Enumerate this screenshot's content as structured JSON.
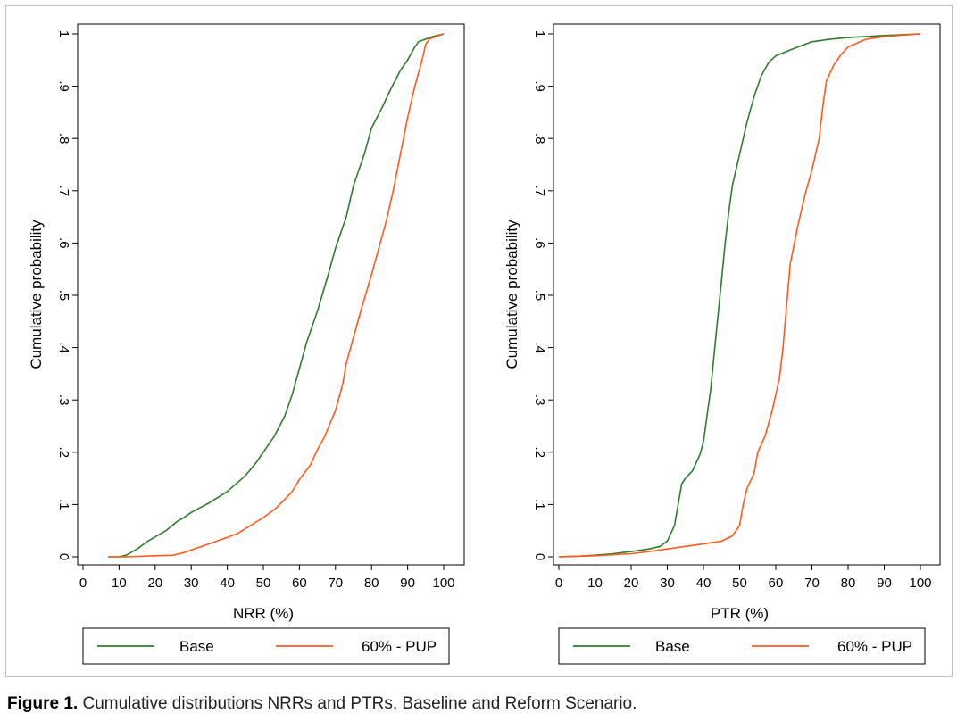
{
  "caption": {
    "label": "Figure 1.",
    "text": "Cumulative distributions NRRs and PTRs, Baseline and Reform Scenario."
  },
  "colors": {
    "base": "#2e7d2e",
    "pup": "#ff5a1f",
    "axis": "#000000"
  },
  "chart_data": [
    {
      "type": "line",
      "xlabel": "NRR (%)",
      "ylabel": "Cumulative probability",
      "xlim": [
        0,
        100
      ],
      "ylim": [
        0,
        1
      ],
      "x_ticks": [
        "0",
        "10",
        "20",
        "30",
        "40",
        "50",
        "60",
        "70",
        "80",
        "90",
        "100"
      ],
      "y_ticks": [
        "0",
        ".1",
        ".2",
        ".3",
        ".4",
        ".5",
        ".6",
        ".7",
        ".8",
        ".9",
        "1"
      ],
      "legend": {
        "position": "bottom",
        "entries": [
          "Base",
          "60% - PUP"
        ]
      },
      "series": [
        {
          "name": "Base",
          "points": [
            [
              7,
              0
            ],
            [
              10,
              0
            ],
            [
              12,
              0.003
            ],
            [
              15,
              0.015
            ],
            [
              18,
              0.03
            ],
            [
              20,
              0.038
            ],
            [
              23,
              0.05
            ],
            [
              26,
              0.067
            ],
            [
              28,
              0.075
            ],
            [
              30,
              0.085
            ],
            [
              35,
              0.103
            ],
            [
              40,
              0.125
            ],
            [
              45,
              0.155
            ],
            [
              48,
              0.18
            ],
            [
              50,
              0.2
            ],
            [
              53,
              0.23
            ],
            [
              56,
              0.27
            ],
            [
              58,
              0.31
            ],
            [
              60,
              0.36
            ],
            [
              62,
              0.41
            ],
            [
              65,
              0.47
            ],
            [
              68,
              0.54
            ],
            [
              70,
              0.59
            ],
            [
              73,
              0.65
            ],
            [
              75,
              0.71
            ],
            [
              78,
              0.77
            ],
            [
              80,
              0.82
            ],
            [
              83,
              0.86
            ],
            [
              85,
              0.89
            ],
            [
              88,
              0.93
            ],
            [
              90,
              0.95
            ],
            [
              92,
              0.975
            ],
            [
              93,
              0.985
            ],
            [
              95,
              0.99
            ],
            [
              97,
              0.995
            ],
            [
              100,
              1
            ]
          ]
        },
        {
          "name": "60% - PUP",
          "points": [
            [
              7,
              0
            ],
            [
              12,
              0
            ],
            [
              20,
              0.002
            ],
            [
              25,
              0.003
            ],
            [
              28,
              0.008
            ],
            [
              30,
              0.013
            ],
            [
              35,
              0.025
            ],
            [
              40,
              0.037
            ],
            [
              43,
              0.045
            ],
            [
              46,
              0.058
            ],
            [
              50,
              0.075
            ],
            [
              53,
              0.09
            ],
            [
              56,
              0.11
            ],
            [
              58,
              0.125
            ],
            [
              60,
              0.148
            ],
            [
              63,
              0.175
            ],
            [
              65,
              0.205
            ],
            [
              67,
              0.23
            ],
            [
              70,
              0.28
            ],
            [
              72,
              0.33
            ],
            [
              73,
              0.37
            ],
            [
              75,
              0.42
            ],
            [
              77,
              0.47
            ],
            [
              80,
              0.54
            ],
            [
              82,
              0.59
            ],
            [
              84,
              0.64
            ],
            [
              86,
              0.7
            ],
            [
              88,
              0.77
            ],
            [
              90,
              0.84
            ],
            [
              92,
              0.9
            ],
            [
              94,
              0.95
            ],
            [
              95,
              0.98
            ],
            [
              96,
              0.99
            ],
            [
              98,
              0.995
            ],
            [
              100,
              1
            ]
          ]
        }
      ]
    },
    {
      "type": "line",
      "xlabel": "PTR (%)",
      "ylabel": "Cumulative probability",
      "xlim": [
        0,
        100
      ],
      "ylim": [
        0,
        1
      ],
      "x_ticks": [
        "0",
        "10",
        "20",
        "30",
        "40",
        "50",
        "60",
        "70",
        "80",
        "90",
        "100"
      ],
      "y_ticks": [
        "0",
        ".1",
        ".2",
        ".3",
        ".4",
        ".5",
        ".6",
        ".7",
        ".8",
        ".9",
        "1"
      ],
      "legend": {
        "position": "bottom",
        "entries": [
          "Base",
          "60% - PUP"
        ]
      },
      "series": [
        {
          "name": "Base",
          "points": [
            [
              0,
              0
            ],
            [
              5,
              0.001
            ],
            [
              10,
              0.003
            ],
            [
              15,
              0.006
            ],
            [
              20,
              0.01
            ],
            [
              25,
              0.015
            ],
            [
              28,
              0.02
            ],
            [
              30,
              0.03
            ],
            [
              32,
              0.06
            ],
            [
              33,
              0.1
            ],
            [
              34,
              0.14
            ],
            [
              35,
              0.15
            ],
            [
              37,
              0.165
            ],
            [
              38,
              0.18
            ],
            [
              39,
              0.195
            ],
            [
              40,
              0.22
            ],
            [
              41,
              0.27
            ],
            [
              42,
              0.32
            ],
            [
              43,
              0.39
            ],
            [
              44,
              0.46
            ],
            [
              45,
              0.53
            ],
            [
              46,
              0.6
            ],
            [
              47,
              0.66
            ],
            [
              48,
              0.71
            ],
            [
              50,
              0.77
            ],
            [
              52,
              0.83
            ],
            [
              54,
              0.88
            ],
            [
              56,
              0.92
            ],
            [
              58,
              0.945
            ],
            [
              60,
              0.958
            ],
            [
              65,
              0.972
            ],
            [
              70,
              0.985
            ],
            [
              75,
              0.99
            ],
            [
              80,
              0.993
            ],
            [
              90,
              0.997
            ],
            [
              100,
              1
            ]
          ]
        },
        {
          "name": "60% - PUP",
          "points": [
            [
              0,
              0
            ],
            [
              10,
              0.002
            ],
            [
              20,
              0.006
            ],
            [
              25,
              0.01
            ],
            [
              30,
              0.015
            ],
            [
              35,
              0.02
            ],
            [
              40,
              0.025
            ],
            [
              45,
              0.03
            ],
            [
              48,
              0.04
            ],
            [
              50,
              0.06
            ],
            [
              51,
              0.1
            ],
            [
              52,
              0.13
            ],
            [
              54,
              0.16
            ],
            [
              55,
              0.2
            ],
            [
              57,
              0.23
            ],
            [
              59,
              0.28
            ],
            [
              61,
              0.34
            ],
            [
              62,
              0.4
            ],
            [
              63,
              0.48
            ],
            [
              64,
              0.56
            ],
            [
              66,
              0.63
            ],
            [
              68,
              0.69
            ],
            [
              70,
              0.74
            ],
            [
              72,
              0.8
            ],
            [
              73,
              0.86
            ],
            [
              74,
              0.91
            ],
            [
              76,
              0.94
            ],
            [
              78,
              0.96
            ],
            [
              80,
              0.975
            ],
            [
              85,
              0.99
            ],
            [
              90,
              0.995
            ],
            [
              100,
              1
            ]
          ]
        }
      ]
    }
  ]
}
